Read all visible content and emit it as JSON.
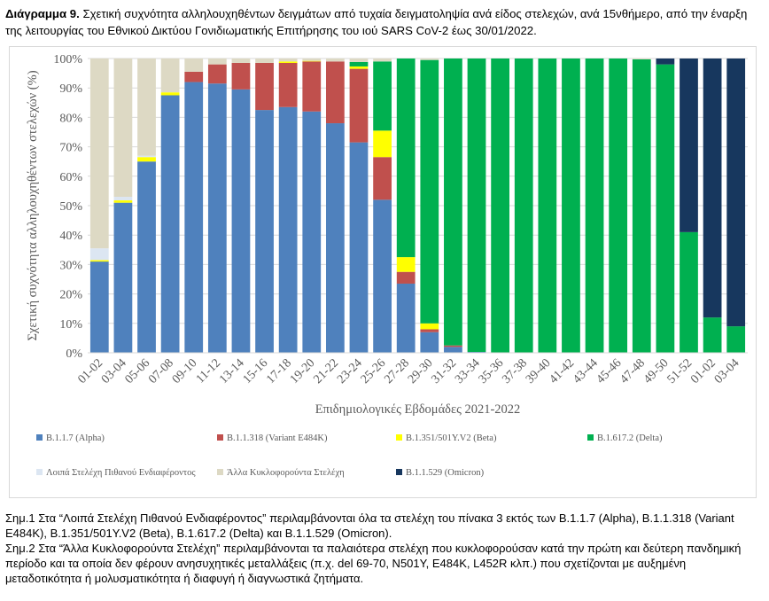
{
  "caption": {
    "label": "Διάγραμμα 9.",
    "text": "Σχετική συχνότητα αλληλουχηθέντων δειγμάτων από τυχαία δειγματοληψία ανά είδος στελεχών, ανά 15νθήμερο, από την έναρξη της λειτουργίας του Εθνικού Δικτύου Γονιδιωματικής Επιτήρησης του ιού SARS CoV-2 έως 30/01/2022."
  },
  "notes": [
    "Σημ.1 Στα “Λοιπά Στελέχη Πιθανού Ενδιαφέροντος” περιλαμβάνονται όλα τα στελέχη του πίνακα 3 εκτός των B.1.1.7 (Alpha), B.1.1.318 (Variant E484K), B.1.351/501Y.V2 (Beta), B.1.617.2 (Delta) και B.1.1.529 (Omicron).",
    "Σημ.2 Στα “Άλλα Κυκλοφορούντα Στελέχη” περιλαμβάνονται τα παλαιότερα στελέχη που κυκλοφορούσαν κατά την πρώτη και δεύτερη πανδημική περίοδο και τα οποία δεν φέρουν ανησυχητικές μεταλλάξεις (π.χ. del 69-70, N501Y, E484K, L452R κλπ.) που σχετίζονται με αυξημένη μεταδοτικότητα ή μολυσματικότητα ή διαφυγή ή διαγνωστικά ζητήματα."
  ],
  "chart_data": {
    "type": "bar",
    "stacked": true,
    "xlabel": "Επιδημιολογικές Εβδομάδες 2021-2022",
    "ylabel": "Σχετική συχνότητα αλληλουχηθέντων στελεχών (%)",
    "ylim": [
      0,
      100
    ],
    "yticks": [
      "0%",
      "10%",
      "20%",
      "30%",
      "40%",
      "50%",
      "60%",
      "70%",
      "80%",
      "90%",
      "100%"
    ],
    "categories": [
      "01-02",
      "03-04",
      "05-06",
      "07-08",
      "09-10",
      "11-12",
      "13-14",
      "15-16",
      "17-18",
      "19-20",
      "21-22",
      "23-24",
      "25-26",
      "27-28",
      "29-30",
      "31-32",
      "33-34",
      "35-36",
      "37-38",
      "39-40",
      "41-42",
      "43-44",
      "45-46",
      "47-48",
      "49-50",
      "51-52",
      "01-02",
      "03-04"
    ],
    "series": [
      {
        "name": "B.1.1.7 (Alpha)",
        "color": "#4f81bd",
        "values": [
          31,
          51,
          65,
          87.5,
          92,
          91.5,
          89.5,
          82.5,
          83.5,
          82,
          78,
          71.5,
          52,
          23.5,
          7,
          2,
          0.3,
          0,
          0,
          0,
          0,
          0,
          0,
          0,
          0,
          0,
          0,
          0
        ]
      },
      {
        "name": "B.1.1.318 (Variant E484K)",
        "color": "#c0504d",
        "values": [
          0,
          0,
          0,
          0,
          3.5,
          6.5,
          9,
          16,
          15,
          17,
          21,
          25,
          14.5,
          4,
          1,
          0.5,
          0,
          0,
          0,
          0,
          0,
          0,
          0,
          0,
          0,
          0,
          0,
          0
        ]
      },
      {
        "name": "B.1.351/501Y.V2 (Beta)",
        "color": "#ffff00",
        "values": [
          0.5,
          0.8,
          1.5,
          1,
          0,
          0,
          0,
          0,
          0.5,
          0.2,
          0,
          0.8,
          9,
          5,
          2,
          0,
          0,
          0,
          0,
          0,
          0,
          0,
          0,
          0,
          0,
          0,
          0,
          0
        ]
      },
      {
        "name": "B.1.617.2 (Delta)",
        "color": "#00b050",
        "values": [
          0,
          0,
          0,
          0,
          0,
          0,
          0,
          0,
          0,
          0,
          0,
          1.5,
          23.5,
          67.5,
          89.5,
          97.5,
          99.7,
          100,
          100,
          100,
          100,
          100,
          100,
          99.7,
          98,
          41,
          12,
          9
        ]
      },
      {
        "name": "Λοιπά Στελέχη Πιθανού Ενδιαφέροντος",
        "color": "#dce6f2",
        "values": [
          4,
          1.2,
          0.5,
          0,
          0,
          0,
          0,
          0,
          0,
          0,
          0,
          0,
          0,
          0,
          0,
          0,
          0,
          0,
          0,
          0,
          0,
          0,
          0,
          0,
          0,
          0,
          0,
          0
        ]
      },
      {
        "name": "Άλλα Κυκλοφορούντα Στελέχη",
        "color": "#ddd9c4",
        "values": [
          64.5,
          47,
          33,
          11.5,
          4.5,
          2,
          1.5,
          1.5,
          1,
          0.8,
          1,
          1.2,
          1,
          0,
          0.5,
          0,
          0,
          0,
          0,
          0,
          0,
          0,
          0,
          0.3,
          0,
          0,
          0,
          0
        ]
      },
      {
        "name": "B.1.1.529 (Omicron)",
        "color": "#17375e",
        "values": [
          0,
          0,
          0,
          0,
          0,
          0,
          0,
          0,
          0,
          0,
          0,
          0,
          0,
          0,
          0,
          0,
          0,
          0,
          0,
          0,
          0,
          0,
          0,
          0,
          2,
          59,
          88,
          91
        ]
      }
    ],
    "legend_layout": "bottom, two rows"
  }
}
